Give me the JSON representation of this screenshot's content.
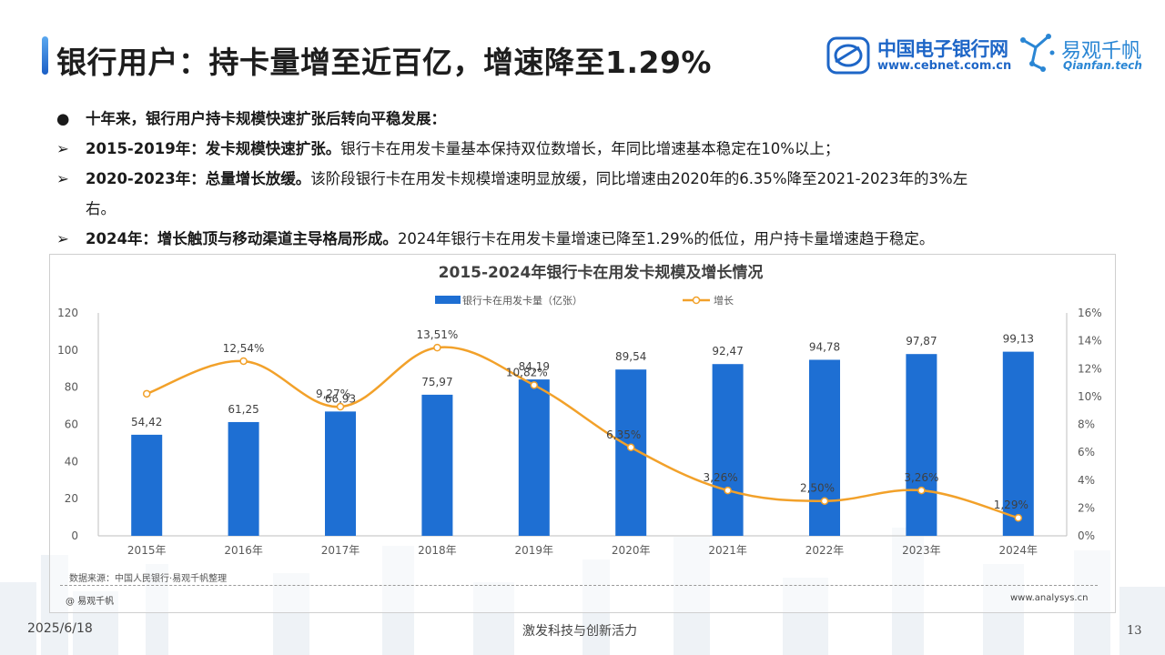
{
  "title": "银行用户：持卡量增至近百亿，增速降至1.29%",
  "logos": {
    "cebnet_cn": "中国电子银行网",
    "cebnet_url": "www.cebnet.com.cn",
    "qianfan_cn": "易观千帆",
    "qianfan_en": "Qianfan.tech"
  },
  "bullets": [
    {
      "marker": "●",
      "bold": "十年来，银行用户持卡规模快速扩张后转向平稳发展：",
      "text": ""
    },
    {
      "marker": "➢",
      "bold": "2015-2019年：发卡规模快速扩张。",
      "text": "银行卡在用发卡量基本保持双位数增长，年同比增速基本稳定在10%以上；"
    },
    {
      "marker": "➢",
      "bold": "2020-2023年：总量增长放缓。",
      "text": "该阶段银行卡在用发卡规模增速明显放缓，同比增速由2020年的6.35%降至2021-2023年的3%左"
    },
    {
      "marker": "",
      "bold": "",
      "text": "右。"
    },
    {
      "marker": "➢",
      "bold": "2024年：增长触顶与移动渠道主导格局形成。",
      "text": "2024年银行卡在用发卡量增速已降至1.29%的低位，用户持卡量增速趋于稳定。"
    }
  ],
  "chart_data": {
    "type": "bar+line",
    "title": "2015-2024年银行卡在用发卡规模及增长情况",
    "categories": [
      "2015年",
      "2016年",
      "2017年",
      "2018年",
      "2019年",
      "2020年",
      "2021年",
      "2022年",
      "2023年",
      "2024年"
    ],
    "series": [
      {
        "name": "银行卡在用发卡量（亿张）",
        "type": "bar",
        "axis": "left",
        "color": "#1e6fd3",
        "values": [
          54.42,
          61.25,
          66.93,
          75.97,
          84.19,
          89.54,
          92.47,
          94.78,
          97.87,
          99.13
        ],
        "labels": [
          "54,42",
          "61,25",
          "66,93",
          "75,97",
          "84,19",
          "89,54",
          "92,47",
          "94,78",
          "97,87",
          "99,13"
        ]
      },
      {
        "name": "增长",
        "type": "line",
        "axis": "right",
        "color": "#f2a12a",
        "values": [
          10.2,
          12.54,
          9.27,
          13.51,
          10.82,
          6.35,
          3.26,
          2.5,
          3.26,
          1.29
        ],
        "labels": [
          "",
          "12,54%",
          "9,27%",
          "13,51%",
          "10,82%",
          "6,35%",
          "3,26%",
          "2,50%",
          "3,26%",
          "1,29%"
        ]
      }
    ],
    "y_left": {
      "min": 0,
      "max": 120,
      "ticks": [
        "0",
        "20",
        "40",
        "60",
        "80",
        "100",
        "120"
      ]
    },
    "y_right": {
      "min": 0,
      "max": 16,
      "ticks": [
        "0%",
        "2%",
        "4%",
        "6%",
        "8%",
        "10%",
        "12%",
        "14%",
        "16%"
      ]
    },
    "legend_position": "top-center",
    "grid": false
  },
  "source": "数据来源：中国人民银行·易观千帆整理",
  "copyright": "@ 易观千帆",
  "site": "www.analysys.cn",
  "footer": {
    "date": "2025/6/18",
    "slogan": "激发科技与创新活力",
    "page": "13"
  }
}
